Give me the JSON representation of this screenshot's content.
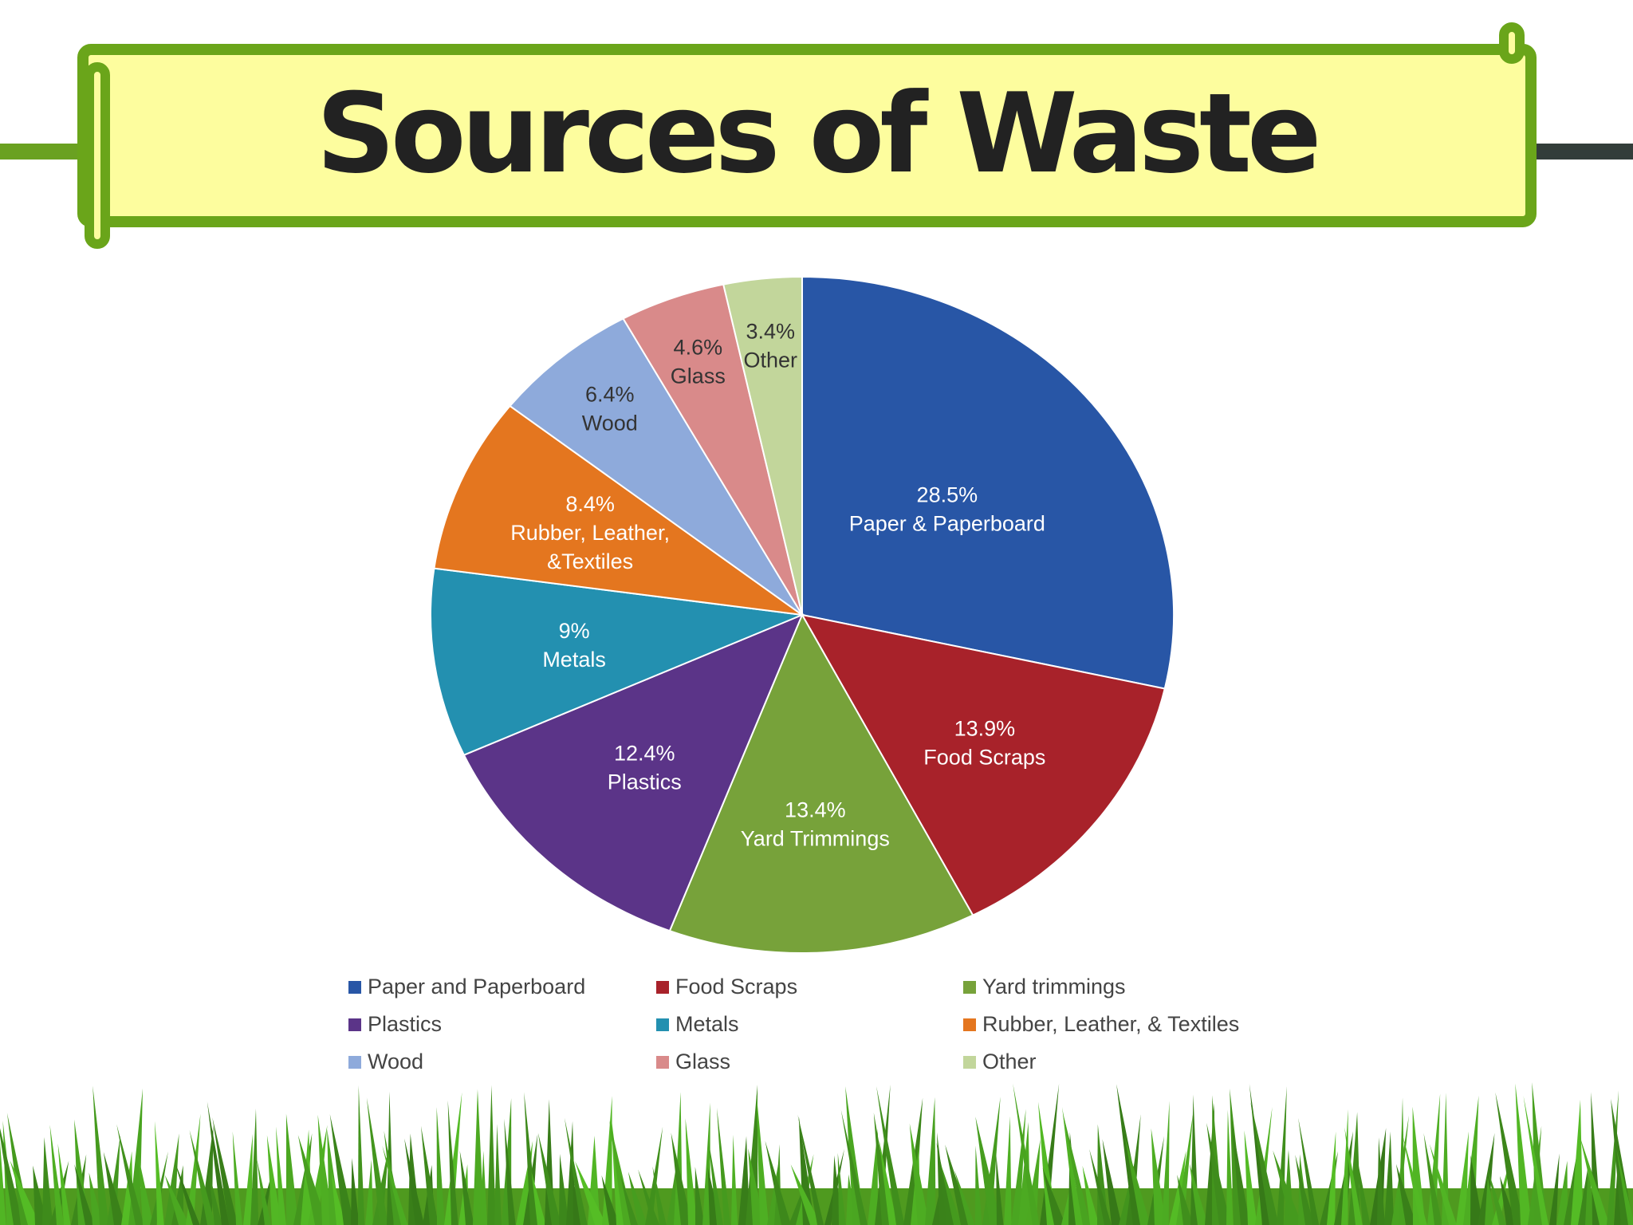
{
  "chart_data": {
    "type": "pie",
    "title": "Sources of Waste",
    "categories": [
      "Paper and Paperboard",
      "Food Scraps",
      "Yard trimmings",
      "Plastics",
      "Metals",
      "Rubber, Leather, & Textiles",
      "Wood",
      "Glass",
      "Other"
    ],
    "values": [
      28.5,
      13.9,
      13.4,
      12.4,
      9,
      8.4,
      6.4,
      4.6,
      3.4
    ],
    "value_labels": [
      "28.5%",
      "13.9%",
      "13.4%",
      "12.4%",
      "9%",
      "8.4%",
      "6.4%",
      "4.6%",
      "3.4%"
    ],
    "slice_labels": [
      [
        "Paper & Paperboard"
      ],
      [
        "Food Scraps"
      ],
      [
        "Yard Trimmings"
      ],
      [
        "Plastics"
      ],
      [
        "Metals"
      ],
      [
        "Rubber, Leather,",
        "&Textiles"
      ],
      [
        "Wood"
      ],
      [
        "Glass"
      ],
      [
        "Other"
      ]
    ],
    "colors": [
      "#2856a6",
      "#a8222a",
      "#77a23a",
      "#5b3488",
      "#2390b0",
      "#e4761f",
      "#8eaadb",
      "#d98a8a",
      "#c2d69b"
    ],
    "label_colors": [
      "#ffffff",
      "#ffffff",
      "#ffffff",
      "#ffffff",
      "#ffffff",
      "#ffffff",
      "#333333",
      "#333333",
      "#333333"
    ]
  }
}
